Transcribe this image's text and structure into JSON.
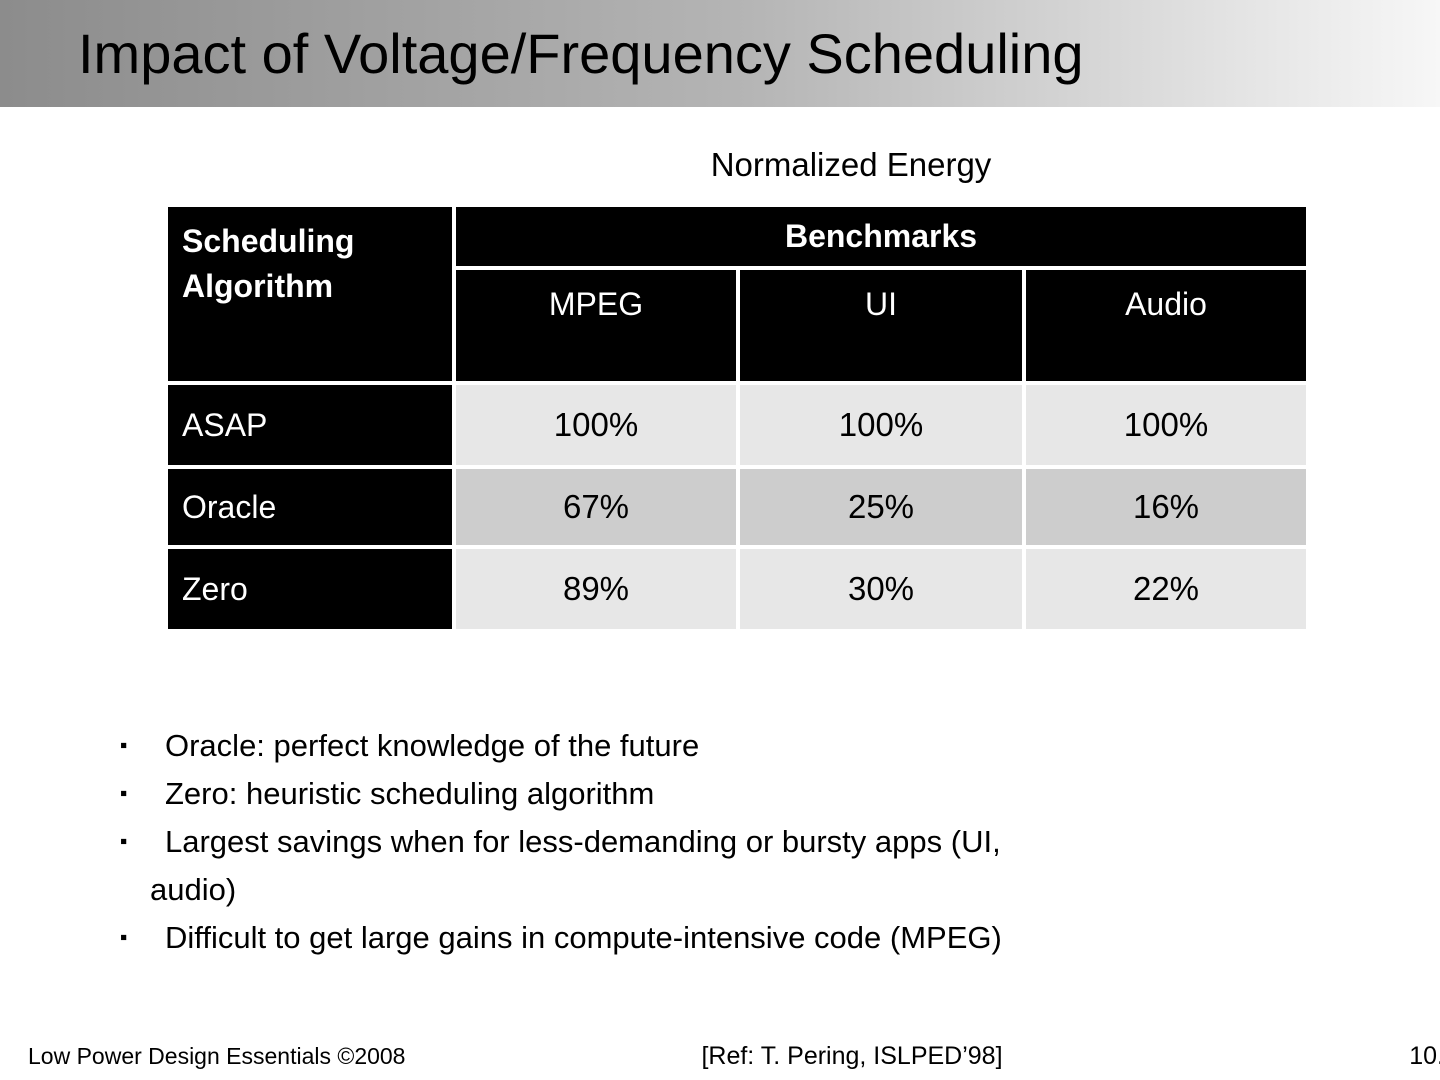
{
  "slide": {
    "title": "Impact of Voltage/Frequency Scheduling",
    "table_caption": "Normalized Energy",
    "table": {
      "corner_header": "Scheduling Algorithm",
      "group_header": "Benchmarks",
      "columns": [
        "MPEG",
        "UI",
        "Audio"
      ],
      "rows": [
        {
          "label": "ASAP",
          "values": [
            "100%",
            "100%",
            "100%"
          ]
        },
        {
          "label": "Oracle",
          "values": [
            "67%",
            "25%",
            "16%"
          ]
        },
        {
          "label": "Zero",
          "values": [
            "89%",
            "30%",
            "22%"
          ]
        }
      ]
    },
    "bullets": [
      {
        "marker": "▪",
        "line1": "Oracle: perfect knowledge of the future",
        "line2": ""
      },
      {
        "marker": "▪",
        "line1": "Zero: heuristic scheduling algorithm",
        "line2": ""
      },
      {
        "marker": "▪",
        "line1": "Largest savings when for less-demanding or bursty apps (UI,",
        "line2": "audio)"
      },
      {
        "marker": "▪",
        "line1": "Difficult to get large gains in compute-intensive code (MPEG)",
        "line2": ""
      }
    ],
    "footer": {
      "left": "Low Power Design Essentials ©2008",
      "center": "[Ref: T. Pering, ISLPED’98]",
      "right": "10."
    },
    "colors": {
      "title_band_gradient_left": "#8c8c8c",
      "title_band_gradient_mid": "#b5b5b5",
      "title_band_gradient_right": "#f7f7f7",
      "header_cell_bg": "#000000",
      "header_cell_text": "#ffffff",
      "row_light": "#e7e7e7",
      "row_mid": "#cdcdcd",
      "body_text": "#000000"
    }
  }
}
